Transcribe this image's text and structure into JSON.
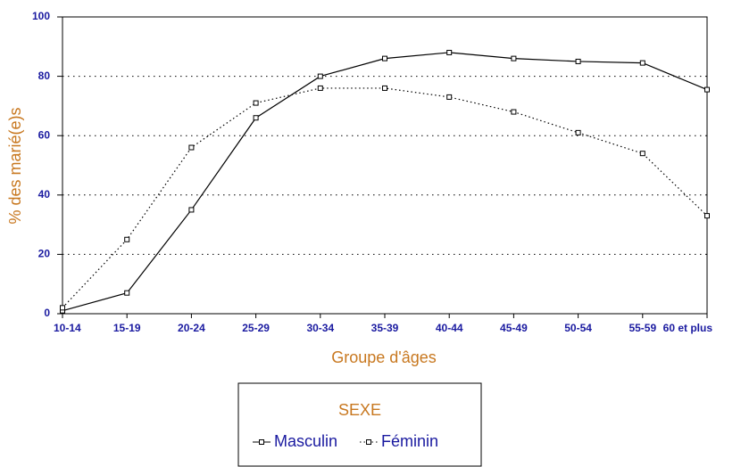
{
  "chart_data": {
    "type": "line",
    "x_label": "Groupe d'âges",
    "y_label": "% des marié(e)s",
    "legend_title": "SEXE",
    "categories": [
      "10-14",
      "15-19",
      "20-24",
      "25-29",
      "30-34",
      "35-39",
      "40-44",
      "45-49",
      "50-54",
      "55-59",
      "60 et plus"
    ],
    "series": [
      {
        "name": "Masculin",
        "color": "#000000",
        "style": "solid",
        "values": [
          1,
          7,
          35,
          66,
          80,
          86,
          88,
          86,
          85,
          84.5,
          75.5
        ]
      },
      {
        "name": "Féminin",
        "color": "#000000",
        "style": "dotted",
        "values": [
          2,
          25,
          56,
          71,
          76,
          76,
          73,
          68,
          61,
          54,
          33
        ]
      }
    ],
    "ylim": [
      0,
      100
    ],
    "yticks": [
      0,
      20,
      40,
      60,
      80,
      100
    ],
    "grid": true,
    "legend": "bottom"
  }
}
